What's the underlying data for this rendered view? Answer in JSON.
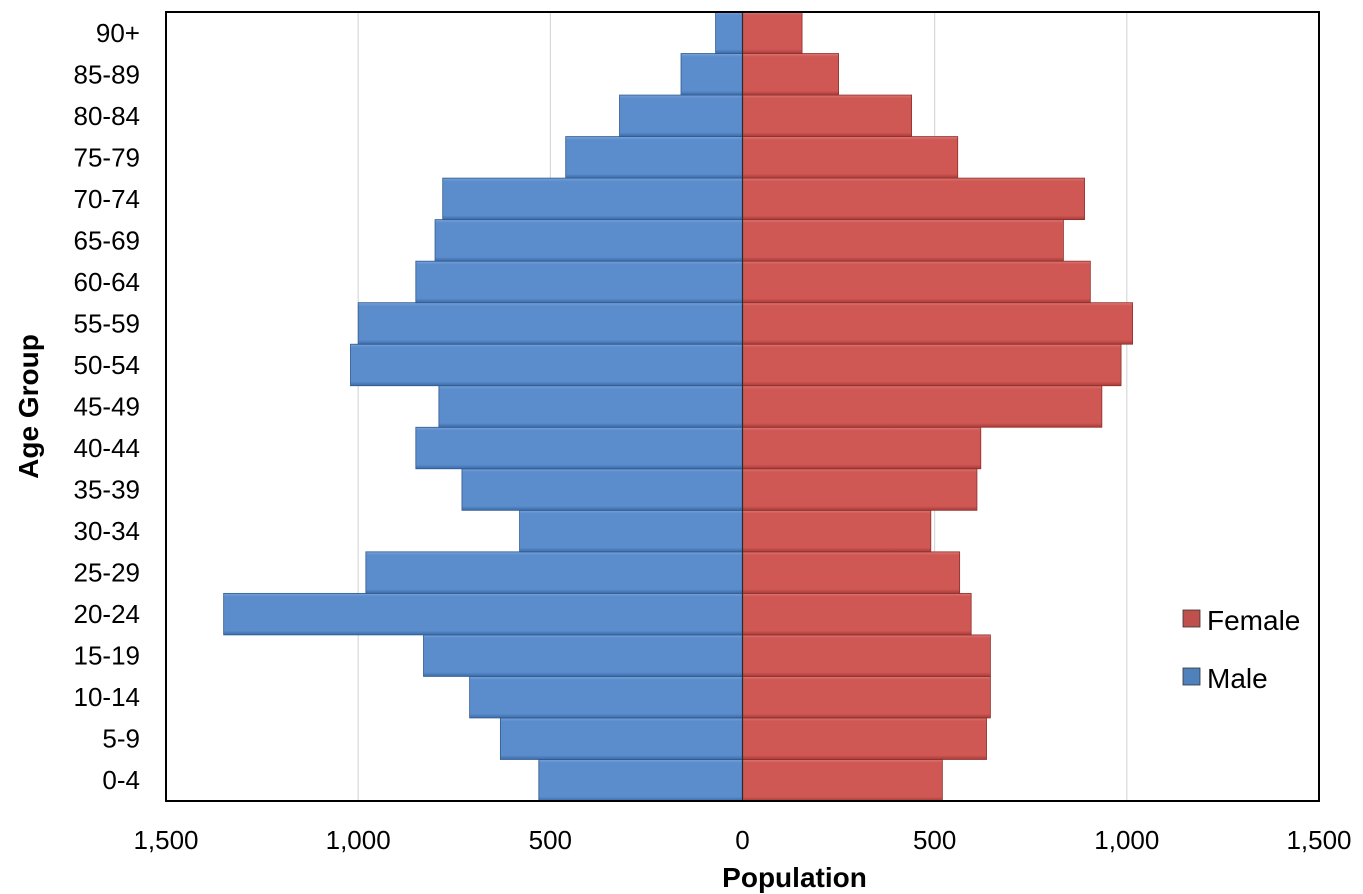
{
  "chart_data": {
    "type": "bar",
    "orientation": "horizontal",
    "subtype": "population-pyramid",
    "title": "",
    "xlabel": "Population",
    "ylabel": "Age Group",
    "xlim": [
      -1500,
      1500
    ],
    "x_ticks": [
      -1500,
      -1000,
      -500,
      0,
      500,
      1000,
      1500
    ],
    "x_tick_labels": [
      "1,500",
      "1,000",
      "500",
      "0",
      "500",
      "1,000",
      "1,500"
    ],
    "categories": [
      "0-4",
      "5-9",
      "10-14",
      "15-19",
      "20-24",
      "25-29",
      "30-34",
      "35-39",
      "40-44",
      "45-49",
      "50-54",
      "55-59",
      "60-64",
      "65-69",
      "70-74",
      "75-79",
      "80-84",
      "85-89",
      "90+"
    ],
    "series": [
      {
        "name": "Male",
        "color": "#4F81BD",
        "values": [
          530,
          630,
          710,
          830,
          1350,
          980,
          580,
          730,
          850,
          790,
          1020,
          1000,
          850,
          800,
          780,
          460,
          320,
          160,
          70
        ]
      },
      {
        "name": "Female",
        "color": "#C0504D",
        "values": [
          520,
          635,
          645,
          645,
          595,
          565,
          490,
          610,
          620,
          935,
          985,
          1015,
          905,
          835,
          890,
          560,
          440,
          250,
          155
        ]
      }
    ],
    "grid": "vertical",
    "legend_position": "right",
    "legend_order": [
      "Female",
      "Male"
    ]
  }
}
